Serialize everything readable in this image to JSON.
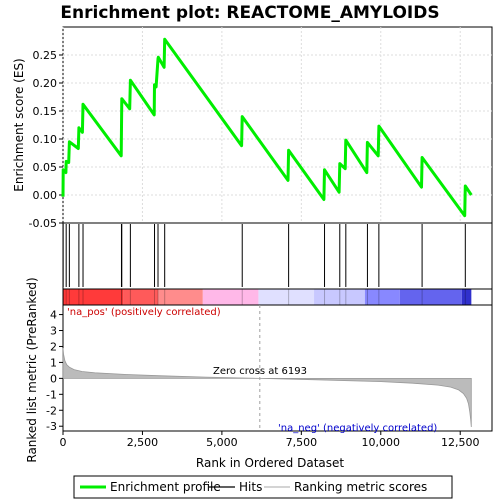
{
  "chart_data": {
    "type": "line",
    "title": "Enrichment plot: REACTOME_AMYLOIDS",
    "colors": {
      "enrichment_line": "#00ee00",
      "hits": "#000000",
      "ranking_fill": "#bbbbbb",
      "zero_cross_line": "#a0a0a0",
      "pos_label": "#cc0000",
      "neg_label": "#0000cc"
    },
    "top_panel": {
      "ylabel": "Enrichment score (ES)",
      "ylim": [
        -0.05,
        0.3
      ],
      "yticks": [
        -0.05,
        0.0,
        0.05,
        0.1,
        0.15,
        0.2,
        0.25
      ],
      "ytick_labels": [
        "-0.05",
        "0.00",
        "0.05",
        "0.10",
        "0.15",
        "0.20",
        "0.25"
      ],
      "grid": true,
      "series": [
        {
          "name": "Enrichment profile",
          "x": [
            0,
            5,
            90,
            100,
            180,
            200,
            480,
            500,
            610,
            630,
            1830,
            1840,
            1850,
            2100,
            2120,
            2870,
            2880,
            2930,
            2990,
            3000,
            3180,
            3200,
            5620,
            5640,
            7080,
            7100,
            8210,
            8230,
            8690,
            8710,
            8880,
            8900,
            9560,
            9580,
            9920,
            9940,
            11280,
            11300,
            12640,
            12660,
            12850
          ],
          "y": [
            -0.003,
            0.045,
            0.04,
            0.06,
            0.058,
            0.095,
            0.083,
            0.12,
            0.112,
            0.162,
            0.07,
            0.122,
            0.172,
            0.154,
            0.205,
            0.143,
            0.197,
            0.193,
            0.243,
            0.246,
            0.228,
            0.278,
            0.088,
            0.14,
            0.026,
            0.08,
            -0.008,
            0.045,
            0.005,
            0.056,
            0.047,
            0.098,
            0.04,
            0.094,
            0.07,
            0.123,
            0.014,
            0.067,
            -0.037,
            0.016,
            0.0
          ]
        }
      ]
    },
    "hits_panel": {
      "hit_ranks": [
        5,
        100,
        200,
        500,
        630,
        1840,
        1850,
        2120,
        2880,
        2990,
        3200,
        5640,
        7100,
        8230,
        8710,
        8900,
        9580,
        9940,
        11300,
        12660
      ],
      "gradient_colors": [
        "#ff3a3a",
        "#ff5a5a",
        "#ff8c8c",
        "#ffb8e8",
        "#e0e0ff",
        "#c8c8ff",
        "#8888ff",
        "#6464ee",
        "#3030cc"
      ],
      "gradient_breaks": [
        0,
        1900,
        3000,
        4400,
        6150,
        7900,
        9500,
        10600,
        12550,
        12850
      ]
    },
    "bottom_panel": {
      "ylabel": "Ranked list metric (PreRanked)",
      "xlabel": "Rank in Ordered Dataset",
      "ylim": [
        -3.3,
        4.6
      ],
      "yticks": [
        -3,
        -2,
        -1,
        0,
        1,
        2,
        3,
        4
      ],
      "ytick_labels": [
        "-3",
        "-2",
        "-1",
        "0",
        "1",
        "2",
        "3",
        "4"
      ],
      "xlim": [
        0,
        13500
      ],
      "xticks": [
        0,
        2500,
        5000,
        7500,
        10000,
        12500
      ],
      "xtick_labels": [
        "0",
        "2,500",
        "5,000",
        "7,500",
        "10,000",
        "12,500"
      ],
      "metric_curve": {
        "x": [
          0,
          20,
          60,
          120,
          200,
          350,
          600,
          1000,
          2000,
          3000,
          4500,
          6193,
          8000,
          10000,
          11000,
          11800,
          12200,
          12450,
          12600,
          12700,
          12760,
          12800,
          12830,
          12850
        ],
        "y": [
          1.9,
          1.5,
          1.1,
          0.85,
          0.7,
          0.55,
          0.43,
          0.35,
          0.24,
          0.17,
          0.08,
          0.0,
          -0.09,
          -0.2,
          -0.3,
          -0.42,
          -0.55,
          -0.72,
          -0.95,
          -1.25,
          -1.6,
          -2.1,
          -2.6,
          -3.05
        ]
      },
      "zero_cross_rank": 6193,
      "zero_cross_label": "Zero cross at 6193",
      "pos_label": "'na_pos' (positively correlated)",
      "neg_label": "'na_neg' (negatively correlated)"
    },
    "legend": {
      "position": "bottom",
      "items": [
        {
          "label": "Enrichment profile",
          "color": "#00ee00",
          "kind": "thick-line"
        },
        {
          "label": "Hits",
          "color": "#000000",
          "kind": "thin-line"
        },
        {
          "label": "Ranking metric scores",
          "color": "#bbbbbb",
          "kind": "thin-line"
        }
      ]
    }
  }
}
